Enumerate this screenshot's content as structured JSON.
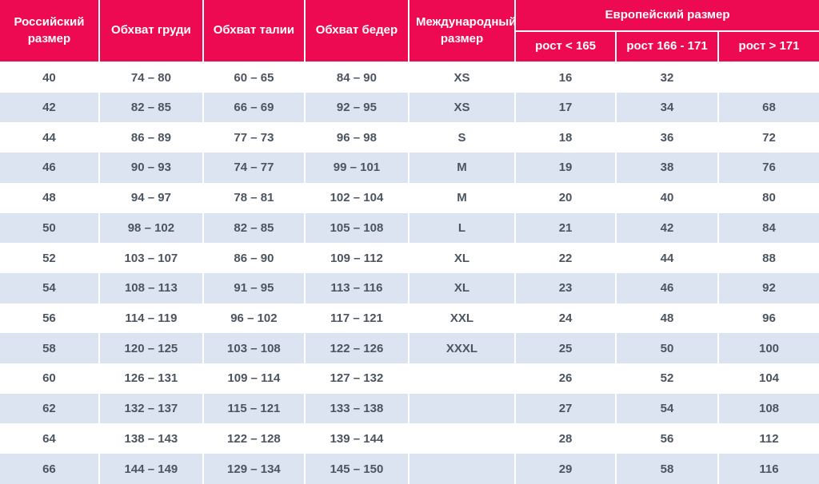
{
  "colors": {
    "header_bg": "#ee0a53",
    "header_text": "#ffffff",
    "row_bg": "#ffffff",
    "row_alt_bg": "#dde4f1",
    "body_text": "#4b5560",
    "divider": "#ffffff"
  },
  "chart_data": {
    "type": "table",
    "columns": [
      "Российский размер",
      "Обхват груди",
      "Обхват талии",
      "Обхват бедер",
      "Международный размер",
      "рост < 165",
      "рост 166 - 171",
      "рост > 171"
    ],
    "column_groups": [
      {
        "label": "Европейский размер",
        "columns": [
          "рост < 165",
          "рост 166 - 171",
          "рост > 171"
        ]
      }
    ],
    "rows": [
      [
        "40",
        "74 – 80",
        "60 – 65",
        "84 – 90",
        "XS",
        "16",
        "32",
        ""
      ],
      [
        "42",
        "82 – 85",
        "66 – 69",
        "92 – 95",
        "XS",
        "17",
        "34",
        "68"
      ],
      [
        "44",
        "86 – 89",
        "77 – 73",
        "96 – 98",
        "S",
        "18",
        "36",
        "72"
      ],
      [
        "46",
        "90 – 93",
        "74 – 77",
        "99 – 101",
        "M",
        "19",
        "38",
        "76"
      ],
      [
        "48",
        "94 – 97",
        "78 – 81",
        "102 – 104",
        "M",
        "20",
        "40",
        "80"
      ],
      [
        "50",
        "98 – 102",
        "82 – 85",
        "105 – 108",
        "L",
        "21",
        "42",
        "84"
      ],
      [
        "52",
        "103 – 107",
        "86 – 90",
        "109 – 112",
        "XL",
        "22",
        "44",
        "88"
      ],
      [
        "54",
        "108 – 113",
        "91 – 95",
        "113 – 116",
        "XL",
        "23",
        "46",
        "92"
      ],
      [
        "56",
        "114 – 119",
        "96 – 102",
        "117 – 121",
        "XXL",
        "24",
        "48",
        "96"
      ],
      [
        "58",
        "120 – 125",
        "103 – 108",
        "122 – 126",
        "XXXL",
        "25",
        "50",
        "100"
      ],
      [
        "60",
        "126 – 131",
        "109 – 114",
        "127 – 132",
        "",
        "26",
        "52",
        "104"
      ],
      [
        "62",
        "132 – 137",
        "115 – 121",
        "133 – 138",
        "",
        "27",
        "54",
        "108"
      ],
      [
        "64",
        "138 – 143",
        "122 – 128",
        "139 – 144",
        "",
        "28",
        "56",
        "112"
      ],
      [
        "66",
        "144 – 149",
        "129 – 134",
        "145 – 150",
        "",
        "29",
        "58",
        "116"
      ]
    ]
  }
}
